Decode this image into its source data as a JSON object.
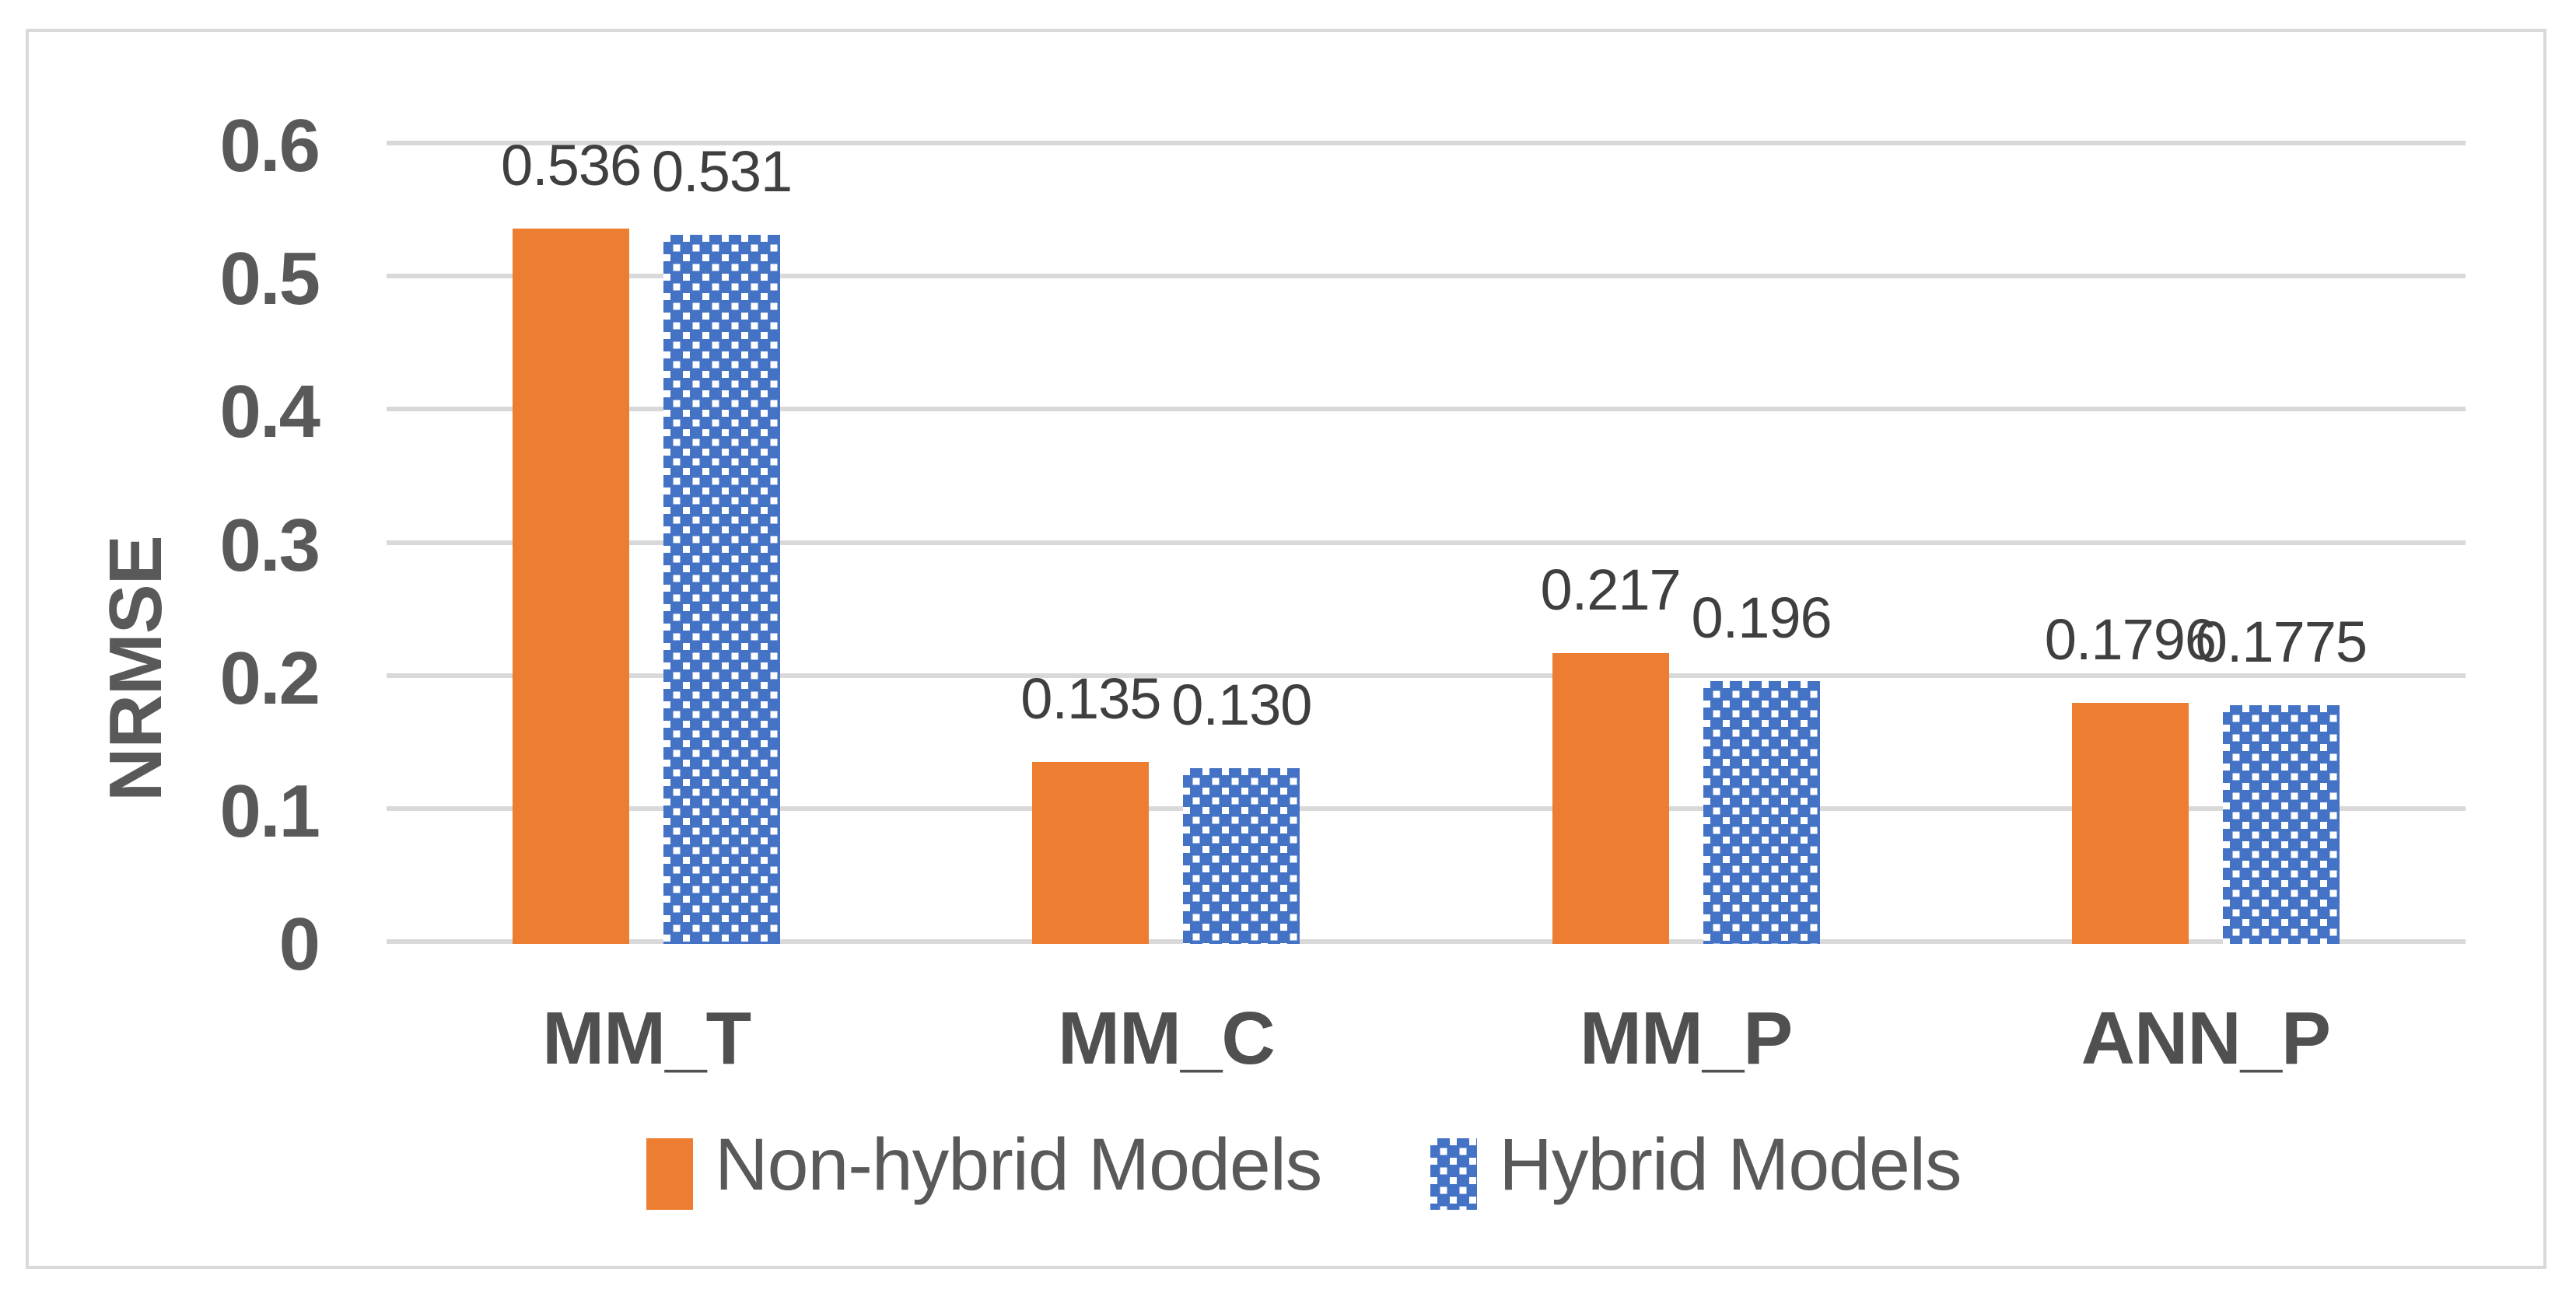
{
  "chart_data": {
    "type": "bar",
    "title": "",
    "xlabel": "",
    "ylabel": "NRMSE",
    "ylim": [
      0,
      0.6
    ],
    "yticks": [
      0,
      0.1,
      0.2,
      0.3,
      0.4,
      0.5,
      0.6
    ],
    "ytick_labels": [
      "0",
      "0.1",
      "0.2",
      "0.3",
      "0.4",
      "0.5",
      "0.6"
    ],
    "categories": [
      "MM_T",
      "MM_C",
      "MM_P",
      "ANN_P"
    ],
    "series": [
      {
        "name": "Non-hybrid Models",
        "values": [
          0.536,
          0.135,
          0.217,
          0.1796
        ],
        "labels": [
          "0.536",
          "0.135",
          "0.217",
          "0.1796"
        ],
        "color": "#ED7D31",
        "pattern": "solid"
      },
      {
        "name": "Hybrid Models",
        "values": [
          0.531,
          0.13,
          0.196,
          0.1775
        ],
        "labels": [
          "0.531",
          "0.130",
          "0.196",
          "0.1775"
        ],
        "color": "#4472C4",
        "pattern": "white-dots"
      }
    ],
    "grid": true,
    "legend_position": "bottom"
  },
  "colors": {
    "non_hybrid": "#ED7D31",
    "hybrid": "#4472C4",
    "gridline": "#D9D9D9",
    "frame_border": "#D9D9D9",
    "axis_text": "#595959",
    "data_label_text": "#3F3F3F",
    "background": "#FFFFFF"
  }
}
